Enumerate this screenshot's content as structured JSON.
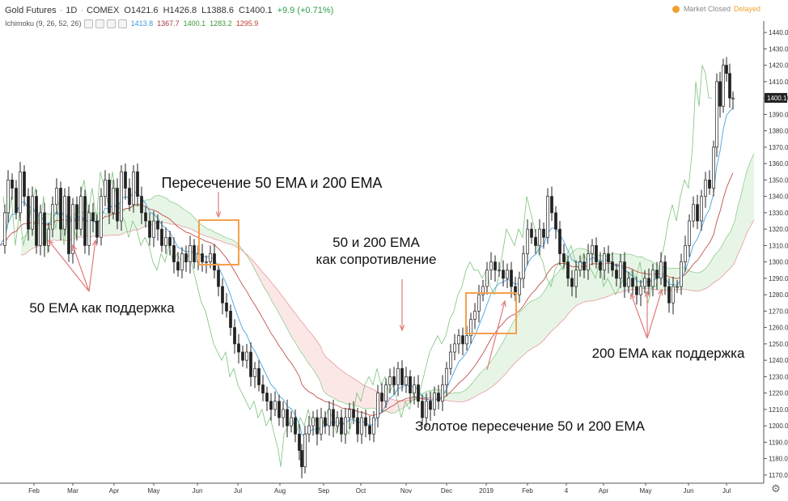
{
  "header": {
    "symbol": "Gold Futures",
    "interval": "1D",
    "exchange": "COMEX",
    "open_label": "O",
    "open": "1421.6",
    "high_label": "H",
    "high": "1426.8",
    "low_label": "L",
    "low": "1388.6",
    "close_label": "C",
    "close": "1400.1",
    "change": "+9.9 (+0.71%)",
    "market_status": "Market Closed",
    "delayed": "Delayed"
  },
  "indicator": {
    "name": "Ichimoku (9, 26, 52, 26)",
    "values": [
      "1413.8",
      "1367.7",
      "1400.1",
      "1283.2",
      "1295.9"
    ],
    "colors": [
      "#3a9ad9",
      "#a83a3a",
      "#3a9a3a",
      "#3a9a3a",
      "#c0392b"
    ]
  },
  "chart_data": {
    "type": "candlestick",
    "x_labels": [
      "Feb",
      "Mar",
      "Apr",
      "May",
      "Jun",
      "Jul",
      "Aug",
      "Sep",
      "Oct",
      "Nov",
      "Dec",
      "2019",
      "Feb",
      "4",
      "Apr",
      "May",
      "Jun",
      "Jul"
    ],
    "y_ticks": [
      1170,
      1180,
      1190,
      1200,
      1210,
      1220,
      1230,
      1240,
      1250,
      1260,
      1270,
      1280,
      1290,
      1300,
      1310,
      1320,
      1330,
      1340,
      1350,
      1360,
      1370,
      1380,
      1390,
      1400,
      1410,
      1420,
      1430,
      1440
    ],
    "ylim": [
      1165,
      1445
    ],
    "last_price": "1400.1",
    "price_path": [
      [
        0,
        1310
      ],
      [
        6,
        1330
      ],
      [
        10,
        1350
      ],
      [
        15,
        1345
      ],
      [
        20,
        1330
      ],
      [
        25,
        1355
      ],
      [
        30,
        1340
      ],
      [
        35,
        1320
      ],
      [
        40,
        1340
      ],
      [
        45,
        1310
      ],
      [
        50,
        1330
      ],
      [
        55,
        1310
      ],
      [
        60,
        1320
      ],
      [
        65,
        1335
      ],
      [
        70,
        1345
      ],
      [
        75,
        1320
      ],
      [
        80,
        1340
      ],
      [
        85,
        1305
      ],
      [
        90,
        1335
      ],
      [
        95,
        1320
      ],
      [
        100,
        1340
      ],
      [
        105,
        1310
      ],
      [
        110,
        1330
      ],
      [
        115,
        1325
      ],
      [
        120,
        1315
      ],
      [
        125,
        1340
      ],
      [
        130,
        1350
      ],
      [
        135,
        1330
      ],
      [
        140,
        1345
      ],
      [
        145,
        1325
      ],
      [
        150,
        1355
      ],
      [
        155,
        1345
      ],
      [
        160,
        1335
      ],
      [
        165,
        1355
      ],
      [
        170,
        1340
      ],
      [
        175,
        1330
      ],
      [
        180,
        1325
      ],
      [
        185,
        1315
      ],
      [
        190,
        1325
      ],
      [
        195,
        1320
      ],
      [
        200,
        1310
      ],
      [
        205,
        1315
      ],
      [
        210,
        1310
      ],
      [
        215,
        1300
      ],
      [
        220,
        1295
      ],
      [
        225,
        1305
      ],
      [
        230,
        1300
      ],
      [
        235,
        1310
      ],
      [
        240,
        1300
      ],
      [
        245,
        1305
      ],
      [
        250,
        1300
      ],
      [
        255,
        1300
      ],
      [
        260,
        1305
      ],
      [
        265,
        1295
      ],
      [
        270,
        1285
      ],
      [
        275,
        1275
      ],
      [
        280,
        1270
      ],
      [
        285,
        1260
      ],
      [
        290,
        1250
      ],
      [
        295,
        1245
      ],
      [
        300,
        1240
      ],
      [
        305,
        1245
      ],
      [
        310,
        1230
      ],
      [
        315,
        1235
      ],
      [
        320,
        1225
      ],
      [
        325,
        1220
      ],
      [
        330,
        1215
      ],
      [
        335,
        1210
      ],
      [
        340,
        1215
      ],
      [
        345,
        1205
      ],
      [
        350,
        1210
      ],
      [
        355,
        1200
      ],
      [
        360,
        1205
      ],
      [
        365,
        1195
      ],
      [
        370,
        1185
      ],
      [
        373,
        1175
      ],
      [
        377,
        1195
      ],
      [
        382,
        1200
      ],
      [
        387,
        1205
      ],
      [
        392,
        1195
      ],
      [
        397,
        1205
      ],
      [
        402,
        1200
      ],
      [
        407,
        1210
      ],
      [
        412,
        1200
      ],
      [
        417,
        1205
      ],
      [
        422,
        1195
      ],
      [
        427,
        1205
      ],
      [
        432,
        1210
      ],
      [
        437,
        1205
      ],
      [
        442,
        1195
      ],
      [
        447,
        1205
      ],
      [
        452,
        1200
      ],
      [
        457,
        1195
      ],
      [
        462,
        1205
      ],
      [
        467,
        1220
      ],
      [
        472,
        1215
      ],
      [
        477,
        1225
      ],
      [
        482,
        1230
      ],
      [
        487,
        1225
      ],
      [
        492,
        1235
      ],
      [
        497,
        1225
      ],
      [
        502,
        1230
      ],
      [
        507,
        1220
      ],
      [
        512,
        1225
      ],
      [
        517,
        1215
      ],
      [
        522,
        1205
      ],
      [
        527,
        1215
      ],
      [
        532,
        1210
      ],
      [
        537,
        1220
      ],
      [
        542,
        1215
      ],
      [
        547,
        1225
      ],
      [
        552,
        1235
      ],
      [
        557,
        1245
      ],
      [
        562,
        1250
      ],
      [
        567,
        1255
      ],
      [
        572,
        1250
      ],
      [
        577,
        1255
      ],
      [
        582,
        1265
      ],
      [
        587,
        1270
      ],
      [
        592,
        1280
      ],
      [
        597,
        1285
      ],
      [
        602,
        1295
      ],
      [
        607,
        1300
      ],
      [
        612,
        1295
      ],
      [
        617,
        1295
      ],
      [
        622,
        1290
      ],
      [
        627,
        1295
      ],
      [
        632,
        1285
      ],
      [
        637,
        1280
      ],
      [
        642,
        1290
      ],
      [
        647,
        1305
      ],
      [
        652,
        1320
      ],
      [
        657,
        1315
      ],
      [
        662,
        1310
      ],
      [
        667,
        1320
      ],
      [
        672,
        1315
      ],
      [
        677,
        1340
      ],
      [
        682,
        1330
      ],
      [
        687,
        1320
      ],
      [
        692,
        1305
      ],
      [
        697,
        1300
      ],
      [
        702,
        1290
      ],
      [
        707,
        1285
      ],
      [
        712,
        1295
      ],
      [
        717,
        1300
      ],
      [
        722,
        1295
      ],
      [
        727,
        1305
      ],
      [
        732,
        1310
      ],
      [
        737,
        1300
      ],
      [
        742,
        1295
      ],
      [
        747,
        1305
      ],
      [
        752,
        1300
      ],
      [
        757,
        1295
      ],
      [
        762,
        1290
      ],
      [
        767,
        1300
      ],
      [
        772,
        1285
      ],
      [
        777,
        1290
      ],
      [
        782,
        1285
      ],
      [
        787,
        1280
      ],
      [
        792,
        1285
      ],
      [
        797,
        1290
      ],
      [
        802,
        1285
      ],
      [
        807,
        1295
      ],
      [
        812,
        1290
      ],
      [
        817,
        1300
      ],
      [
        822,
        1285
      ],
      [
        827,
        1275
      ],
      [
        832,
        1285
      ],
      [
        837,
        1285
      ],
      [
        842,
        1300
      ],
      [
        847,
        1310
      ],
      [
        852,
        1325
      ],
      [
        857,
        1335
      ],
      [
        862,
        1325
      ],
      [
        867,
        1340
      ],
      [
        872,
        1350
      ],
      [
        877,
        1345
      ],
      [
        882,
        1370
      ],
      [
        886,
        1410
      ],
      [
        890,
        1395
      ],
      [
        894,
        1420
      ],
      [
        898,
        1415
      ],
      [
        902,
        1400
      ],
      [
        906,
        1400
      ]
    ],
    "annotations": [
      {
        "text": "Пересечение 50 EMA и 200 EMA"
      },
      {
        "text": "50 и 200 EMA"
      },
      {
        "text": "как сопротивление"
      },
      {
        "text": "50 EMA как поддержка"
      },
      {
        "text": "200 EMA как поддержка"
      },
      {
        "text": "Золотое пересечение 50 и 200 EMA"
      }
    ],
    "grid": false,
    "legend": "none"
  }
}
